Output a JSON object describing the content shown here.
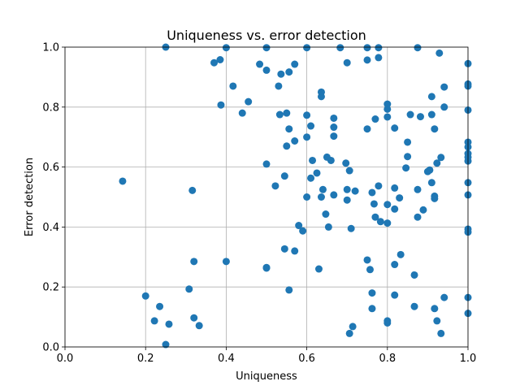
{
  "chart_data": {
    "type": "scatter",
    "title": "Uniqueness vs. error detection",
    "xlabel": "Uniqueness",
    "ylabel": "Error detection",
    "xlim": [
      0.0,
      1.0
    ],
    "ylim": [
      0.0,
      1.0
    ],
    "x_ticks": [
      "0.0",
      "0.2",
      "0.4",
      "0.6",
      "0.8",
      "1.0"
    ],
    "y_ticks": [
      "0.0",
      "0.2",
      "0.4",
      "0.6",
      "0.8",
      "1.0"
    ],
    "grid": true,
    "marker_color": "#1f77b4",
    "points": [
      [
        0.143,
        0.553
      ],
      [
        0.2,
        0.17
      ],
      [
        0.222,
        0.087
      ],
      [
        0.235,
        0.135
      ],
      [
        0.25,
        1.0
      ],
      [
        0.25,
        0.008
      ],
      [
        0.258,
        0.076
      ],
      [
        0.308,
        0.193
      ],
      [
        0.316,
        0.522
      ],
      [
        0.32,
        0.285
      ],
      [
        0.32,
        0.097
      ],
      [
        0.333,
        0.071
      ],
      [
        0.37,
        0.948
      ],
      [
        0.385,
        0.958
      ],
      [
        0.387,
        0.807
      ],
      [
        0.4,
        0.998
      ],
      [
        0.4,
        0.285
      ],
      [
        0.417,
        0.87
      ],
      [
        0.44,
        0.78
      ],
      [
        0.455,
        0.818
      ],
      [
        0.483,
        0.943
      ],
      [
        0.5,
        0.998
      ],
      [
        0.5,
        0.923
      ],
      [
        0.5,
        0.61
      ],
      [
        0.5,
        0.265
      ],
      [
        0.5,
        0.263
      ],
      [
        0.522,
        0.537
      ],
      [
        0.53,
        0.87
      ],
      [
        0.533,
        0.775
      ],
      [
        0.536,
        0.91
      ],
      [
        0.545,
        0.57
      ],
      [
        0.545,
        0.327
      ],
      [
        0.55,
        0.78
      ],
      [
        0.55,
        0.67
      ],
      [
        0.556,
        0.917
      ],
      [
        0.556,
        0.727
      ],
      [
        0.556,
        0.19
      ],
      [
        0.57,
        0.943
      ],
      [
        0.57,
        0.687
      ],
      [
        0.57,
        0.32
      ],
      [
        0.58,
        0.405
      ],
      [
        0.59,
        0.387
      ],
      [
        0.6,
        0.998
      ],
      [
        0.6,
        0.773
      ],
      [
        0.6,
        0.7
      ],
      [
        0.6,
        0.5
      ],
      [
        0.61,
        0.737
      ],
      [
        0.61,
        0.563
      ],
      [
        0.614,
        0.622
      ],
      [
        0.625,
        0.58
      ],
      [
        0.63,
        0.26
      ],
      [
        0.636,
        0.85
      ],
      [
        0.636,
        0.835
      ],
      [
        0.636,
        0.5
      ],
      [
        0.64,
        0.525
      ],
      [
        0.647,
        0.443
      ],
      [
        0.65,
        0.633
      ],
      [
        0.654,
        0.4
      ],
      [
        0.66,
        0.622
      ],
      [
        0.667,
        0.763
      ],
      [
        0.667,
        0.733
      ],
      [
        0.667,
        0.703
      ],
      [
        0.667,
        0.507
      ],
      [
        0.683,
        0.998
      ],
      [
        0.697,
        0.613
      ],
      [
        0.7,
        0.948
      ],
      [
        0.7,
        0.525
      ],
      [
        0.7,
        0.49
      ],
      [
        0.706,
        0.588
      ],
      [
        0.706,
        0.045
      ],
      [
        0.71,
        0.395
      ],
      [
        0.714,
        0.068
      ],
      [
        0.72,
        0.52
      ],
      [
        0.75,
        0.998
      ],
      [
        0.75,
        0.957
      ],
      [
        0.75,
        0.727
      ],
      [
        0.75,
        0.29
      ],
      [
        0.757,
        0.258
      ],
      [
        0.762,
        0.515
      ],
      [
        0.762,
        0.18
      ],
      [
        0.762,
        0.128
      ],
      [
        0.767,
        0.477
      ],
      [
        0.77,
        0.433
      ],
      [
        0.77,
        0.76
      ],
      [
        0.778,
        0.998
      ],
      [
        0.778,
        0.965
      ],
      [
        0.778,
        0.537
      ],
      [
        0.783,
        0.418
      ],
      [
        0.8,
        0.81
      ],
      [
        0.8,
        0.793
      ],
      [
        0.8,
        0.767
      ],
      [
        0.8,
        0.475
      ],
      [
        0.8,
        0.413
      ],
      [
        0.8,
        0.087
      ],
      [
        0.8,
        0.08
      ],
      [
        0.818,
        0.73
      ],
      [
        0.818,
        0.53
      ],
      [
        0.818,
        0.46
      ],
      [
        0.818,
        0.275
      ],
      [
        0.818,
        0.173
      ],
      [
        0.83,
        0.497
      ],
      [
        0.833,
        0.308
      ],
      [
        0.846,
        0.597
      ],
      [
        0.85,
        0.683
      ],
      [
        0.85,
        0.635
      ],
      [
        0.857,
        0.775
      ],
      [
        0.867,
        0.24
      ],
      [
        0.867,
        0.135
      ],
      [
        0.875,
        0.998
      ],
      [
        0.875,
        0.525
      ],
      [
        0.875,
        0.433
      ],
      [
        0.882,
        0.768
      ],
      [
        0.889,
        0.457
      ],
      [
        0.9,
        0.585
      ],
      [
        0.905,
        0.59
      ],
      [
        0.91,
        0.835
      ],
      [
        0.91,
        0.775
      ],
      [
        0.91,
        0.548
      ],
      [
        0.917,
        0.727
      ],
      [
        0.917,
        0.503
      ],
      [
        0.917,
        0.495
      ],
      [
        0.917,
        0.128
      ],
      [
        0.923,
        0.613
      ],
      [
        0.923,
        0.087
      ],
      [
        0.929,
        0.98
      ],
      [
        0.933,
        0.632
      ],
      [
        0.933,
        0.045
      ],
      [
        0.941,
        0.867
      ],
      [
        0.941,
        0.8
      ],
      [
        0.941,
        0.165
      ],
      [
        1.0,
        0.945
      ],
      [
        1.0,
        0.877
      ],
      [
        1.0,
        0.87
      ],
      [
        1.0,
        0.79
      ],
      [
        1.0,
        0.683
      ],
      [
        1.0,
        0.667
      ],
      [
        1.0,
        0.645
      ],
      [
        1.0,
        0.633
      ],
      [
        1.0,
        0.62
      ],
      [
        1.0,
        0.548
      ],
      [
        1.0,
        0.507
      ],
      [
        1.0,
        0.393
      ],
      [
        1.0,
        0.383
      ],
      [
        1.0,
        0.165
      ],
      [
        1.0,
        0.112
      ]
    ]
  }
}
